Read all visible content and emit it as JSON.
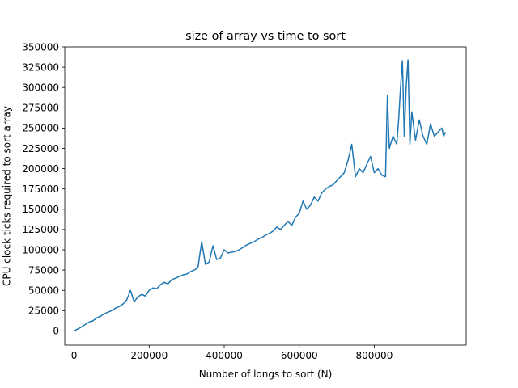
{
  "chart_data": {
    "type": "line",
    "title": "size of array vs time to sort",
    "xlabel": "Number of longs to sort (N)",
    "ylabel": "CPU clock ticks required to sort array",
    "xlim": [
      -25000,
      1045000
    ],
    "ylim": [
      -17500,
      350000
    ],
    "x_ticks": [
      0,
      200000,
      400000,
      600000,
      800000
    ],
    "x_tick_labels": [
      "0",
      "200000",
      "400000",
      "600000",
      "800000"
    ],
    "y_ticks": [
      0,
      25000,
      50000,
      75000,
      100000,
      125000,
      150000,
      175000,
      200000,
      225000,
      250000,
      275000,
      300000,
      325000,
      350000
    ],
    "y_tick_labels": [
      "0",
      "25000",
      "50000",
      "75000",
      "100000",
      "125000",
      "150000",
      "175000",
      "200000",
      "225000",
      "250000",
      "275000",
      "300000",
      "325000",
      "350000"
    ],
    "grid": false,
    "legend": "none",
    "series": [
      {
        "color": "#1f77b4",
        "x": [
          0,
          10000,
          20000,
          30000,
          40000,
          50000,
          60000,
          70000,
          80000,
          90000,
          100000,
          110000,
          120000,
          130000,
          140000,
          150000,
          160000,
          170000,
          180000,
          190000,
          200000,
          210000,
          220000,
          230000,
          240000,
          250000,
          260000,
          270000,
          280000,
          290000,
          300000,
          310000,
          320000,
          330000,
          340000,
          350000,
          360000,
          370000,
          380000,
          390000,
          400000,
          410000,
          420000,
          430000,
          440000,
          450000,
          460000,
          470000,
          480000,
          490000,
          500000,
          510000,
          520000,
          530000,
          540000,
          550000,
          560000,
          570000,
          580000,
          590000,
          600000,
          610000,
          620000,
          630000,
          640000,
          650000,
          660000,
          670000,
          680000,
          690000,
          700000,
          710000,
          720000,
          730000,
          740000,
          750000,
          760000,
          770000,
          780000,
          790000,
          800000,
          810000,
          820000,
          830000,
          835000,
          840000,
          850000,
          860000,
          865000,
          870000,
          875000,
          880000,
          885000,
          890000,
          895000,
          900000,
          910000,
          920000,
          930000,
          940000,
          950000,
          960000,
          970000,
          980000,
          985000,
          990000
        ],
        "y": [
          0,
          2500,
          5000,
          8000,
          11000,
          12500,
          16000,
          18000,
          21000,
          23000,
          25000,
          28000,
          30000,
          33000,
          38000,
          50000,
          36000,
          42000,
          45000,
          43000,
          50000,
          53000,
          52000,
          57000,
          60000,
          58000,
          63000,
          65000,
          67000,
          69000,
          70000,
          73000,
          75000,
          78000,
          110000,
          82000,
          85000,
          105000,
          88000,
          90000,
          100000,
          96000,
          97000,
          98000,
          100000,
          103000,
          106000,
          108000,
          110000,
          113000,
          115000,
          118000,
          120000,
          123000,
          128000,
          125000,
          130000,
          135000,
          130000,
          140000,
          145000,
          160000,
          150000,
          155000,
          165000,
          160000,
          170000,
          175000,
          178000,
          180000,
          185000,
          190000,
          195000,
          210000,
          230000,
          190000,
          200000,
          195000,
          205000,
          215000,
          195000,
          200000,
          192000,
          190000,
          290000,
          225000,
          240000,
          230000,
          260000,
          300000,
          333000,
          240000,
          300000,
          334000,
          230000,
          270000,
          235000,
          260000,
          240000,
          230000,
          255000,
          240000,
          245000,
          250000,
          240000,
          245000
        ]
      }
    ]
  }
}
